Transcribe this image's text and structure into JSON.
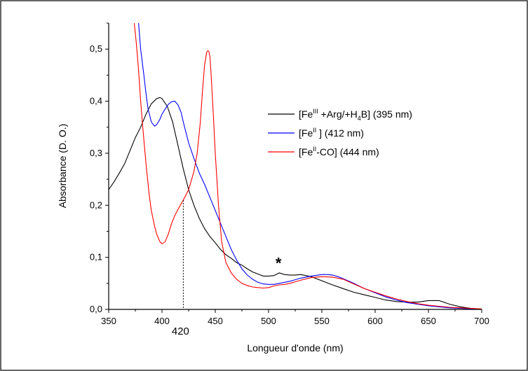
{
  "chart_data": {
    "type": "line",
    "title": "",
    "xlabel": "Longueur d'onde (nm)",
    "ylabel": "Absorbance (D. O.)",
    "xlim": [
      350,
      700
    ],
    "ylim": [
      0,
      0.55
    ],
    "x_ticks": [
      350,
      400,
      450,
      500,
      550,
      600,
      650,
      700
    ],
    "x_tick_labels": [
      "350",
      "400",
      "450",
      "500",
      "550",
      "600",
      "650",
      "700"
    ],
    "y_ticks": [
      0.0,
      0.1,
      0.2,
      0.3,
      0.4,
      0.5
    ],
    "y_tick_labels": [
      "0,0",
      "0,1",
      "0,2",
      "0,3",
      "0,4",
      "0,5"
    ],
    "grid": false,
    "legend_position": "upper-right",
    "legend": [
      {
        "prefix": "[Fe",
        "sup": "III",
        "middle": " +Arg/+H",
        "sub": "4",
        "suffix": "B] (395 nm)",
        "color": "#000000"
      },
      {
        "prefix": "[Fe",
        "sup": "II",
        "middle": " ] (412 nm)",
        "sub": "",
        "suffix": "",
        "color": "#0000ff"
      },
      {
        "prefix": "[Fe",
        "sup": "II",
        "middle": "-CO] (444 nm)",
        "sub": "",
        "suffix": "",
        "color": "#ff0000"
      }
    ],
    "annotations": {
      "asterisk": {
        "text": "*",
        "x": 510,
        "y": 0.092
      },
      "marker": {
        "text": "420",
        "x": 420,
        "y": 0.21
      }
    },
    "series": [
      {
        "color": "#000000",
        "x": [
          350,
          355,
          360,
          365,
          370,
          372,
          375,
          380,
          385,
          390,
          395,
          398,
          400,
          405,
          410,
          415,
          420,
          425,
          430,
          435,
          440,
          445,
          450,
          455,
          460,
          465,
          470,
          475,
          480,
          485,
          490,
          495,
          500,
          505,
          510,
          515,
          520,
          525,
          530,
          540,
          550,
          560,
          570,
          580,
          590,
          600,
          610,
          620,
          630,
          640,
          650,
          660,
          670,
          680,
          690,
          700
        ],
        "y": [
          0.23,
          0.245,
          0.262,
          0.28,
          0.305,
          0.315,
          0.33,
          0.35,
          0.375,
          0.395,
          0.405,
          0.407,
          0.405,
          0.39,
          0.36,
          0.315,
          0.27,
          0.23,
          0.2,
          0.175,
          0.155,
          0.14,
          0.128,
          0.115,
          0.105,
          0.098,
          0.09,
          0.085,
          0.078,
          0.072,
          0.068,
          0.064,
          0.064,
          0.065,
          0.07,
          0.067,
          0.066,
          0.066,
          0.067,
          0.063,
          0.055,
          0.047,
          0.04,
          0.033,
          0.028,
          0.023,
          0.018,
          0.015,
          0.014,
          0.014,
          0.017,
          0.017,
          0.01,
          0.005,
          0.002,
          0.0
        ]
      },
      {
        "color": "#0000ff",
        "x": [
          378,
          380,
          383,
          385,
          387,
          390,
          393,
          395,
          398,
          400,
          403,
          406,
          409,
          412,
          415,
          418,
          420,
          425,
          430,
          435,
          440,
          445,
          450,
          455,
          460,
          465,
          470,
          475,
          480,
          485,
          490,
          495,
          500,
          505,
          510,
          515,
          520,
          525,
          530,
          540,
          550,
          555,
          560,
          565,
          570,
          580,
          590,
          600,
          610,
          620,
          630,
          640,
          650,
          660,
          670,
          680,
          690,
          700
        ],
        "y": [
          0.55,
          0.5,
          0.45,
          0.415,
          0.385,
          0.36,
          0.352,
          0.355,
          0.365,
          0.375,
          0.385,
          0.394,
          0.399,
          0.4,
          0.393,
          0.378,
          0.36,
          0.32,
          0.29,
          0.262,
          0.24,
          0.215,
          0.19,
          0.165,
          0.14,
          0.115,
          0.095,
          0.078,
          0.066,
          0.058,
          0.052,
          0.049,
          0.048,
          0.048,
          0.05,
          0.052,
          0.054,
          0.057,
          0.06,
          0.064,
          0.067,
          0.067,
          0.066,
          0.063,
          0.059,
          0.05,
          0.04,
          0.032,
          0.024,
          0.018,
          0.013,
          0.01,
          0.007,
          0.005,
          0.003,
          0.002,
          0.001,
          0.0
        ]
      },
      {
        "color": "#ff0000",
        "x": [
          374,
          376,
          378,
          380,
          382,
          385,
          388,
          390,
          393,
          395,
          398,
          400,
          403,
          406,
          409,
          412,
          415,
          420,
          425,
          430,
          433,
          436,
          438,
          440,
          442,
          443,
          444,
          445,
          446,
          448,
          450,
          453,
          456,
          460,
          465,
          470,
          475,
          480,
          485,
          490,
          495,
          500,
          505,
          510,
          515,
          520,
          525,
          530,
          540,
          550,
          560,
          570,
          580,
          590,
          600,
          610,
          620,
          630,
          640,
          650,
          660,
          670,
          680,
          690,
          700
        ],
        "y": [
          0.55,
          0.51,
          0.46,
          0.4,
          0.35,
          0.28,
          0.22,
          0.19,
          0.16,
          0.145,
          0.13,
          0.126,
          0.13,
          0.145,
          0.165,
          0.18,
          0.192,
          0.21,
          0.23,
          0.265,
          0.3,
          0.36,
          0.42,
          0.47,
          0.494,
          0.497,
          0.496,
          0.485,
          0.455,
          0.38,
          0.3,
          0.2,
          0.13,
          0.09,
          0.07,
          0.058,
          0.05,
          0.046,
          0.043,
          0.042,
          0.041,
          0.042,
          0.045,
          0.047,
          0.048,
          0.05,
          0.053,
          0.056,
          0.061,
          0.063,
          0.062,
          0.058,
          0.049,
          0.04,
          0.033,
          0.026,
          0.02,
          0.015,
          0.011,
          0.008,
          0.006,
          0.004,
          0.003,
          0.002,
          0.001
        ]
      }
    ]
  }
}
